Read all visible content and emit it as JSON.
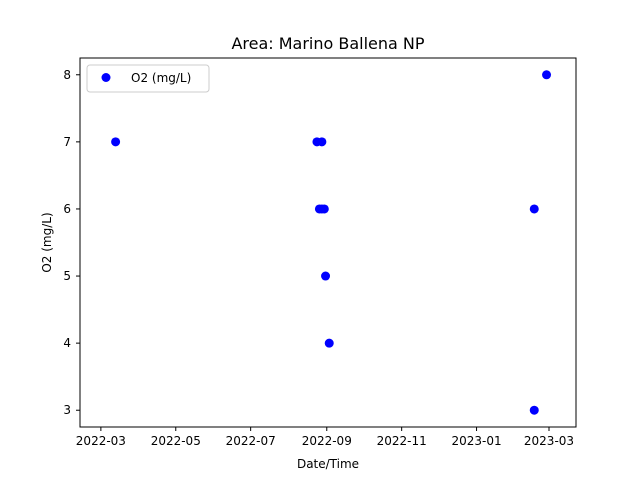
{
  "chart_data": {
    "type": "scatter",
    "title": "Area: Marino Ballena NP",
    "xlabel": "Date/Time",
    "ylabel": "O2 (mg/L)",
    "x_axis_type": "date",
    "xlim": [
      "2022-02-12",
      "2023-03-23"
    ],
    "ylim": [
      2.75,
      8.25
    ],
    "x_ticks": [
      "2022-03",
      "2022-05",
      "2022-07",
      "2022-09",
      "2022-11",
      "2023-01",
      "2023-03"
    ],
    "y_ticks": [
      3,
      4,
      5,
      6,
      7,
      8
    ],
    "grid": false,
    "legend": {
      "position": "top-left",
      "entries": [
        "O2 (mg/L)"
      ]
    },
    "series": [
      {
        "name": "O2 (mg/L)",
        "color": "#0000ff",
        "points": [
          {
            "x": "2022-03-13",
            "y": 7
          },
          {
            "x": "2022-08-24",
            "y": 7
          },
          {
            "x": "2022-08-26",
            "y": 6
          },
          {
            "x": "2022-08-28",
            "y": 7
          },
          {
            "x": "2022-08-28",
            "y": 6
          },
          {
            "x": "2022-08-30",
            "y": 6
          },
          {
            "x": "2022-08-31",
            "y": 5
          },
          {
            "x": "2022-09-03",
            "y": 4
          },
          {
            "x": "2023-02-17",
            "y": 6
          },
          {
            "x": "2023-02-17",
            "y": 3
          },
          {
            "x": "2023-02-27",
            "y": 8
          }
        ]
      }
    ]
  }
}
